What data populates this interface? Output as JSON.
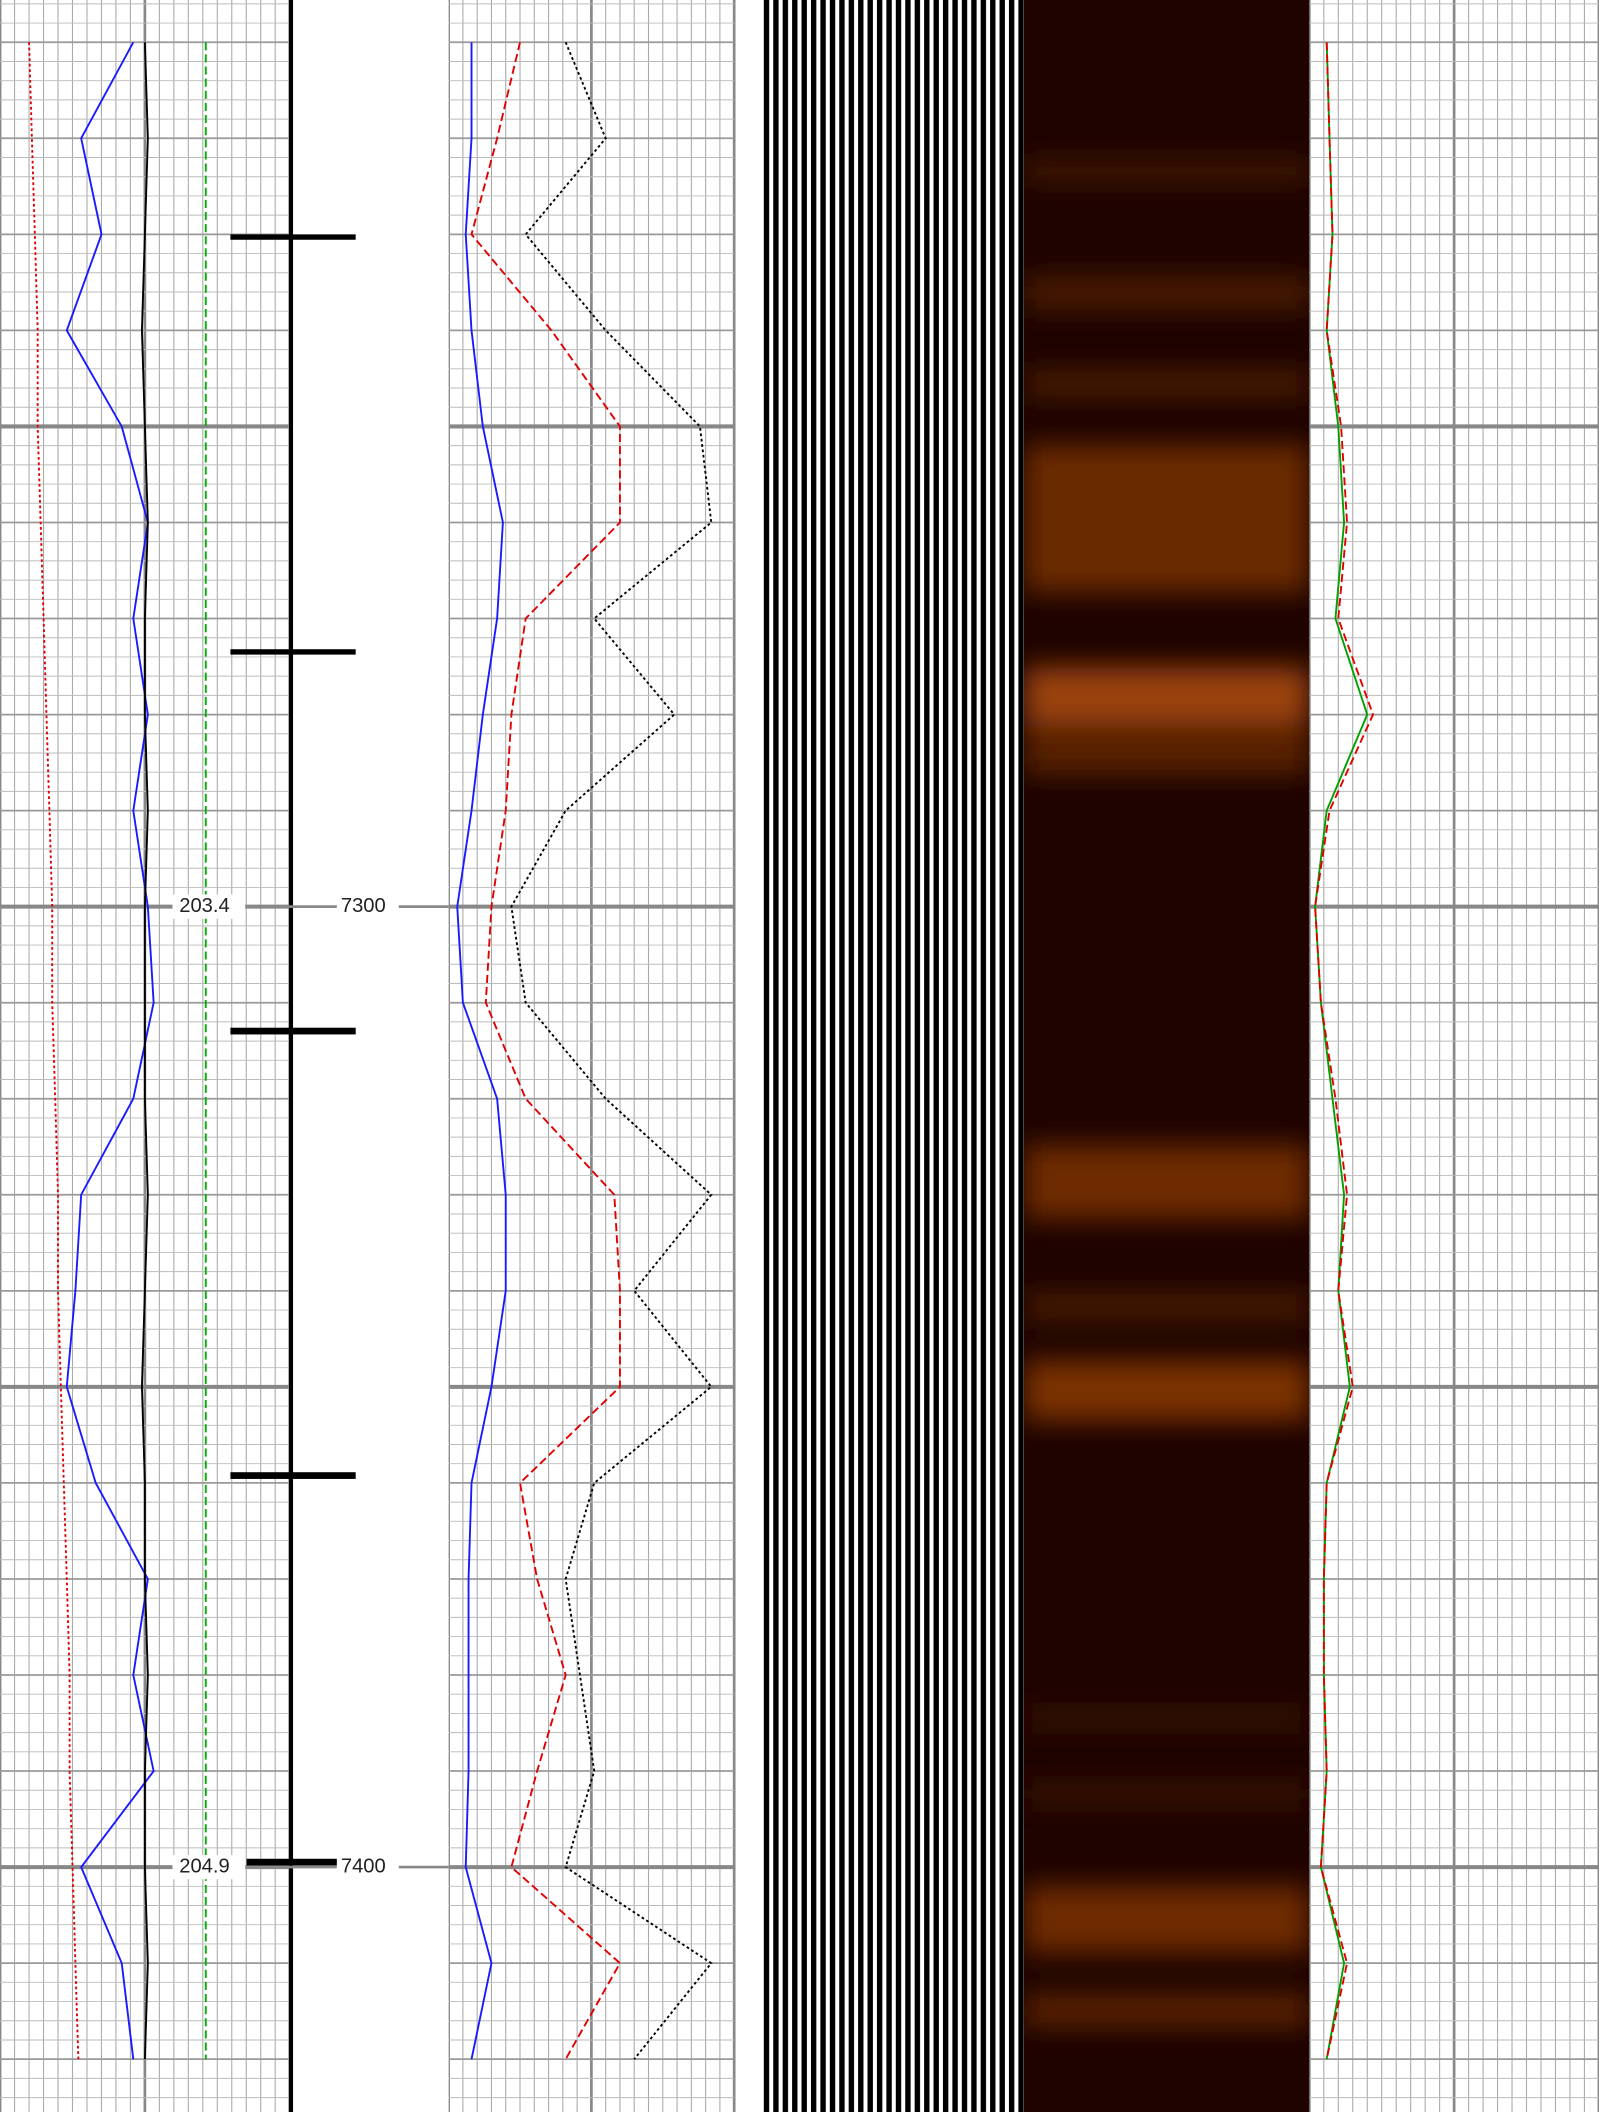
{
  "chart_data": {
    "type": "well-log",
    "ylim": [
      7205.6,
      7425.5
    ],
    "yticks": [
      7300,
      7400
    ],
    "annotations": [
      "203.4",
      "204.9"
    ],
    "x": [
      7210,
      7220,
      7230,
      7240,
      7250,
      7260,
      7270,
      7280,
      7290,
      7300,
      7310,
      7320,
      7330,
      7340,
      7350,
      7360,
      7370,
      7380,
      7390,
      7400,
      7410,
      7420
    ],
    "tracks": [
      {
        "xlim": [
          0,
          100
        ],
        "series": [
          {
            "color": "#1a1aff",
            "style": "solid",
            "values": [
              46,
              28,
              35,
              23,
              42,
              51,
              46,
              51,
              46,
              51,
              53,
              46,
              28,
              26,
              23,
              33,
              51,
              46,
              53,
              28,
              42,
              46
            ]
          },
          {
            "color": "#000000",
            "style": "solid",
            "values": [
              50,
              51,
              50,
              49,
              50,
              51,
              50,
              50,
              51,
              50,
              50,
              50,
              51,
              50,
              49,
              50,
              50,
              51,
              50,
              50,
              51,
              50
            ]
          },
          {
            "color": "#e00000",
            "style": "dotted",
            "values": [
              10,
              11,
              12,
              13,
              13,
              14,
              15,
              16,
              17,
              18,
              18,
              19,
              20,
              20,
              21,
              22,
              23,
              24,
              24,
              25,
              26,
              27
            ]
          },
          {
            "color": "#00b000",
            "style": "dashed",
            "values": [
              71,
              71,
              71,
              71,
              71,
              71,
              71,
              71,
              71,
              71,
              71,
              71,
              71,
              71,
              71,
              71,
              71,
              71,
              71,
              71,
              71,
              71
            ]
          }
        ]
      },
      {
        "xlim": [
          0,
          100
        ],
        "series": [
          {
            "color": "#1a1aff",
            "style": "solid",
            "values": [
              8,
              8,
              6,
              8,
              12,
              19,
              17,
              12,
              8,
              3,
              5,
              17,
              20,
              20,
              15,
              8,
              7,
              7,
              7,
              6,
              15,
              8
            ]
          },
          {
            "color": "#e00000",
            "style": "dashed",
            "values": [
              25,
              17,
              8,
              36,
              60,
              60,
              27,
              22,
              20,
              15,
              13,
              27,
              58,
              60,
              60,
              25,
              31,
              41,
              31,
              22,
              60,
              41
            ]
          },
          {
            "color": "#000000",
            "style": "dotted",
            "values": [
              41,
              55,
              27,
              55,
              88,
              92,
              51,
              79,
              41,
              22,
              27,
              55,
              92,
              65,
              92,
              51,
              41,
              46,
              51,
              41,
              92,
              65
            ]
          }
        ]
      },
      {
        "xlim": [
          0,
          100
        ],
        "series": [
          {
            "color": "#00a000",
            "style": "solid",
            "values": [
              6,
              7,
              8,
              6,
              10,
              12,
              9,
              20,
              6,
              2,
              4,
              8,
              12,
              10,
              14,
              6,
              5,
              5,
              6,
              4,
              12,
              6
            ]
          },
          {
            "color": "#e00000",
            "style": "dashed",
            "values": [
              6,
              7,
              8,
              6,
              11,
              13,
              10,
              22,
              7,
              2,
              4,
              9,
              13,
              10,
              15,
              6,
              5,
              5,
              6,
              4,
              13,
              6
            ]
          }
        ]
      }
    ]
  }
}
